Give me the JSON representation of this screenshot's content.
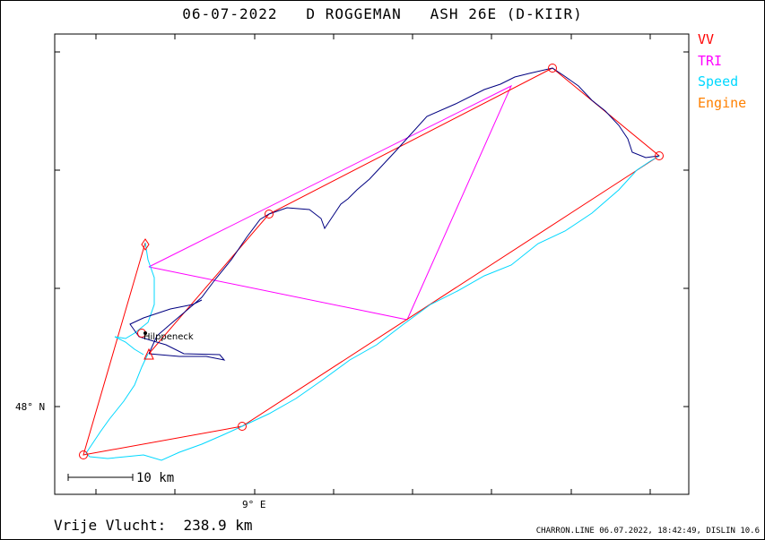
{
  "title": "06-07-2022   D ROGGEMAN   ASH 26E (D-KIIR)",
  "legend": [
    {
      "label": "VV",
      "color": "#ff0000"
    },
    {
      "label": "TRI",
      "color": "#ff00ff"
    },
    {
      "label": "Speed",
      "color": "#00d8ff"
    },
    {
      "label": "Engine",
      "color": "#ff8000"
    }
  ],
  "axes": {
    "lat_label": "48° N",
    "lon_label": "9° E"
  },
  "place": "Hilppeneck",
  "scale": {
    "label": "10 km"
  },
  "footer": {
    "distance": "Vrije Vlucht:  238.9 km",
    "info": "CHARRON.LINE 06.07.2022, 18:42:49, DISLIN 10.6"
  }
}
